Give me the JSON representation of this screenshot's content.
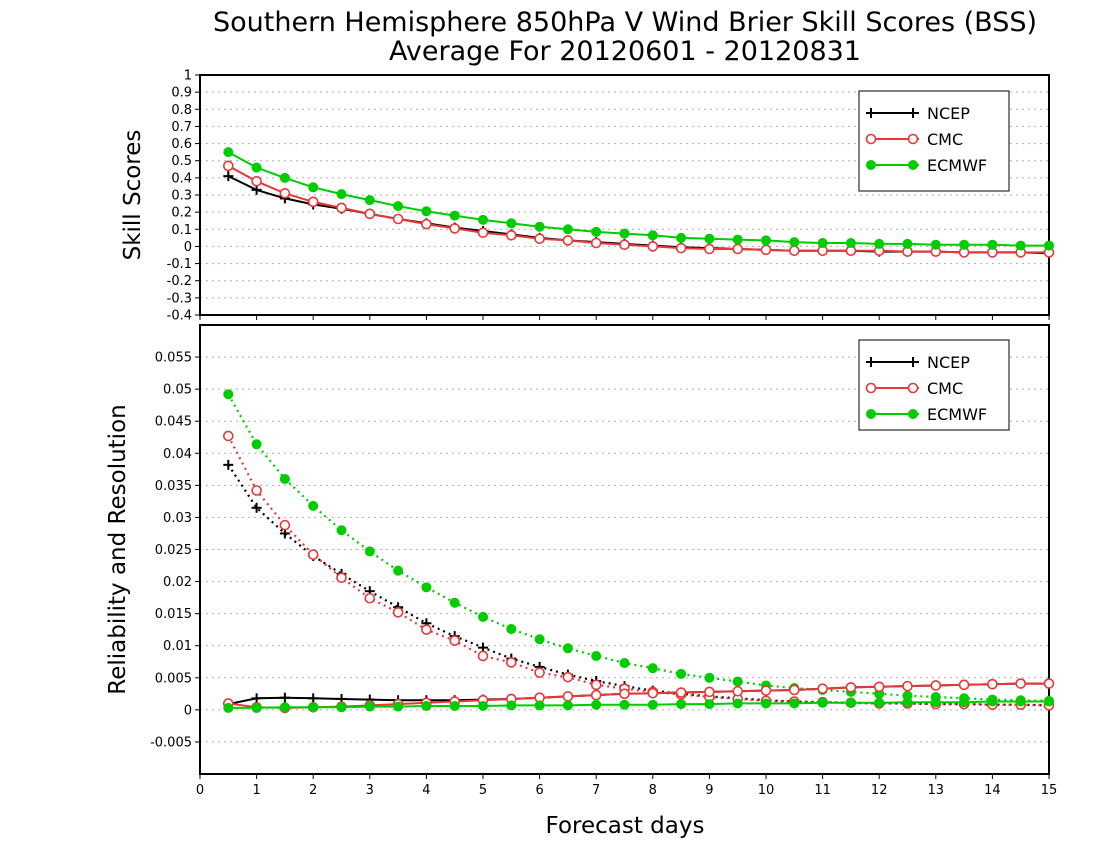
{
  "title": "Southern Hemisphere 850hPa V Wind Brier Skill Scores (BSS)",
  "subtitle": "Average For 20120601 - 20120831",
  "xlabel": "Forecast days",
  "x_ticks": [
    "0",
    "1",
    "2",
    "3",
    "4",
    "5",
    "6",
    "7",
    "8",
    "9",
    "10",
    "11",
    "12",
    "13",
    "14",
    "15"
  ],
  "colors": {
    "NCEP": "#000000",
    "CMC": "#e8383a",
    "ECMWF": "#00cc00"
  },
  "chart_data": [
    {
      "type": "line",
      "ylabel": "Skill Scores",
      "xlim": [
        0,
        15
      ],
      "ylim": [
        -0.4,
        1.0
      ],
      "y_ticks": [
        "-0.4",
        "-0.3",
        "-0.2",
        "-0.1",
        "0",
        "0.1",
        "0.2",
        "0.3",
        "0.4",
        "0.5",
        "0.6",
        "0.7",
        "0.8",
        "0.9",
        "1"
      ],
      "grid": true,
      "legend_position": "top-right",
      "x": [
        0.5,
        1,
        1.5,
        2,
        2.5,
        3,
        3.5,
        4,
        4.5,
        5,
        5.5,
        6,
        6.5,
        7,
        7.5,
        8,
        8.5,
        9,
        9.5,
        10,
        10.5,
        11,
        11.5,
        12,
        12.5,
        13,
        13.5,
        14,
        14.5,
        15
      ],
      "series": [
        {
          "name": "NCEP",
          "marker": "plus",
          "style": "solid",
          "values": [
            0.41,
            0.33,
            0.28,
            0.245,
            0.22,
            0.19,
            0.16,
            0.135,
            0.11,
            0.09,
            0.07,
            0.05,
            0.035,
            0.025,
            0.015,
            0.005,
            -0.005,
            -0.01,
            -0.015,
            -0.02,
            -0.025,
            -0.025,
            -0.025,
            -0.03,
            -0.03,
            -0.03,
            -0.035,
            -0.035,
            -0.035,
            -0.04
          ]
        },
        {
          "name": "CMC",
          "marker": "open-circle",
          "style": "solid",
          "values": [
            0.47,
            0.38,
            0.31,
            0.26,
            0.225,
            0.19,
            0.16,
            0.13,
            0.105,
            0.08,
            0.065,
            0.045,
            0.035,
            0.02,
            0.01,
            0.0,
            -0.01,
            -0.015,
            -0.015,
            -0.02,
            -0.025,
            -0.025,
            -0.025,
            -0.025,
            -0.03,
            -0.03,
            -0.035,
            -0.035,
            -0.035,
            -0.035
          ]
        },
        {
          "name": "ECMWF",
          "marker": "filled-circle",
          "style": "solid",
          "values": [
            0.55,
            0.46,
            0.4,
            0.345,
            0.305,
            0.27,
            0.235,
            0.205,
            0.18,
            0.155,
            0.135,
            0.115,
            0.1,
            0.085,
            0.075,
            0.065,
            0.05,
            0.045,
            0.04,
            0.035,
            0.025,
            0.02,
            0.02,
            0.015,
            0.015,
            0.01,
            0.01,
            0.01,
            0.005,
            0.005
          ]
        }
      ]
    },
    {
      "type": "line",
      "ylabel": "Reliability and Resolution",
      "xlim": [
        0,
        15
      ],
      "ylim": [
        -0.01,
        0.06
      ],
      "y_ticks": [
        "-0.005",
        "0",
        "0.005",
        "0.01",
        "0.015",
        "0.02",
        "0.025",
        "0.03",
        "0.035",
        "0.04",
        "0.045",
        "0.05",
        "0.055"
      ],
      "grid": true,
      "legend_position": "top-right",
      "x": [
        0.5,
        1,
        1.5,
        2,
        2.5,
        3,
        3.5,
        4,
        4.5,
        5,
        5.5,
        6,
        6.5,
        7,
        7.5,
        8,
        8.5,
        9,
        9.5,
        10,
        10.5,
        11,
        11.5,
        12,
        12.5,
        13,
        13.5,
        14,
        14.5,
        15
      ],
      "series": [
        {
          "name": "NCEP",
          "component": "resolution",
          "marker": "plus",
          "style": "dotted",
          "values": [
            0.0382,
            0.0315,
            0.0275,
            0.024,
            0.0212,
            0.0185,
            0.016,
            0.0135,
            0.0115,
            0.0097,
            0.008,
            0.0067,
            0.0055,
            0.0045,
            0.0037,
            0.003,
            0.0025,
            0.0021,
            0.0018,
            0.0015,
            0.0013,
            0.0012,
            0.0011,
            0.001,
            0.001,
            0.0009,
            0.0009,
            0.0008,
            0.0008,
            0.0007
          ]
        },
        {
          "name": "CMC",
          "component": "resolution",
          "marker": "open-circle",
          "style": "dotted",
          "values": [
            0.0427,
            0.0342,
            0.0288,
            0.0242,
            0.0206,
            0.0174,
            0.0152,
            0.0125,
            0.0108,
            0.0084,
            0.0074,
            0.0058,
            0.0051,
            0.0039,
            0.0033,
            0.0028,
            0.0024,
            0.002,
            0.0017,
            0.0014,
            0.0013,
            0.0012,
            0.0011,
            0.001,
            0.001,
            0.0009,
            0.0009,
            0.0008,
            0.0008,
            0.0007
          ]
        },
        {
          "name": "ECMWF",
          "component": "resolution",
          "marker": "filled-circle",
          "style": "dotted",
          "values": [
            0.0492,
            0.0414,
            0.036,
            0.0318,
            0.028,
            0.0247,
            0.0217,
            0.0191,
            0.0167,
            0.0145,
            0.0126,
            0.011,
            0.0096,
            0.0084,
            0.0073,
            0.0065,
            0.0056,
            0.005,
            0.0044,
            0.0038,
            0.0034,
            0.0031,
            0.0028,
            0.0025,
            0.0022,
            0.002,
            0.0018,
            0.0016,
            0.0015,
            0.0014
          ]
        },
        {
          "name": "NCEP",
          "component": "reliability",
          "marker": "plus",
          "style": "solid",
          "values": [
            0.0009,
            0.0018,
            0.0019,
            0.0018,
            0.0017,
            0.0016,
            0.0015,
            0.0015,
            0.0015,
            0.0016,
            0.0017,
            0.0019,
            0.0021,
            0.0023,
            0.0025,
            0.0026,
            0.0027,
            0.0028,
            0.0029,
            0.003,
            0.0031,
            0.0033,
            0.0035,
            0.0036,
            0.0037,
            0.0038,
            0.0039,
            0.004,
            0.0041,
            0.0041
          ]
        },
        {
          "name": "CMC",
          "component": "reliability",
          "marker": "open-circle",
          "style": "solid",
          "values": [
            0.001,
            0.0004,
            0.0003,
            0.0004,
            0.0005,
            0.0007,
            0.0009,
            0.0011,
            0.0013,
            0.0015,
            0.0017,
            0.0019,
            0.0021,
            0.0023,
            0.0025,
            0.0026,
            0.0027,
            0.0028,
            0.0029,
            0.003,
            0.0031,
            0.0033,
            0.0035,
            0.0036,
            0.0037,
            0.0038,
            0.0039,
            0.004,
            0.0041,
            0.0041
          ]
        },
        {
          "name": "ECMWF",
          "component": "reliability",
          "marker": "filled-circle",
          "style": "solid",
          "values": [
            0.0003,
            0.0003,
            0.0004,
            0.0004,
            0.0004,
            0.0005,
            0.0005,
            0.0006,
            0.0006,
            0.0006,
            0.0007,
            0.0007,
            0.0007,
            0.0008,
            0.0008,
            0.0008,
            0.0009,
            0.0009,
            0.001,
            0.001,
            0.001,
            0.0011,
            0.0011,
            0.0011,
            0.0012,
            0.0012,
            0.0012,
            0.0013,
            0.0013,
            0.0013
          ]
        }
      ]
    }
  ]
}
